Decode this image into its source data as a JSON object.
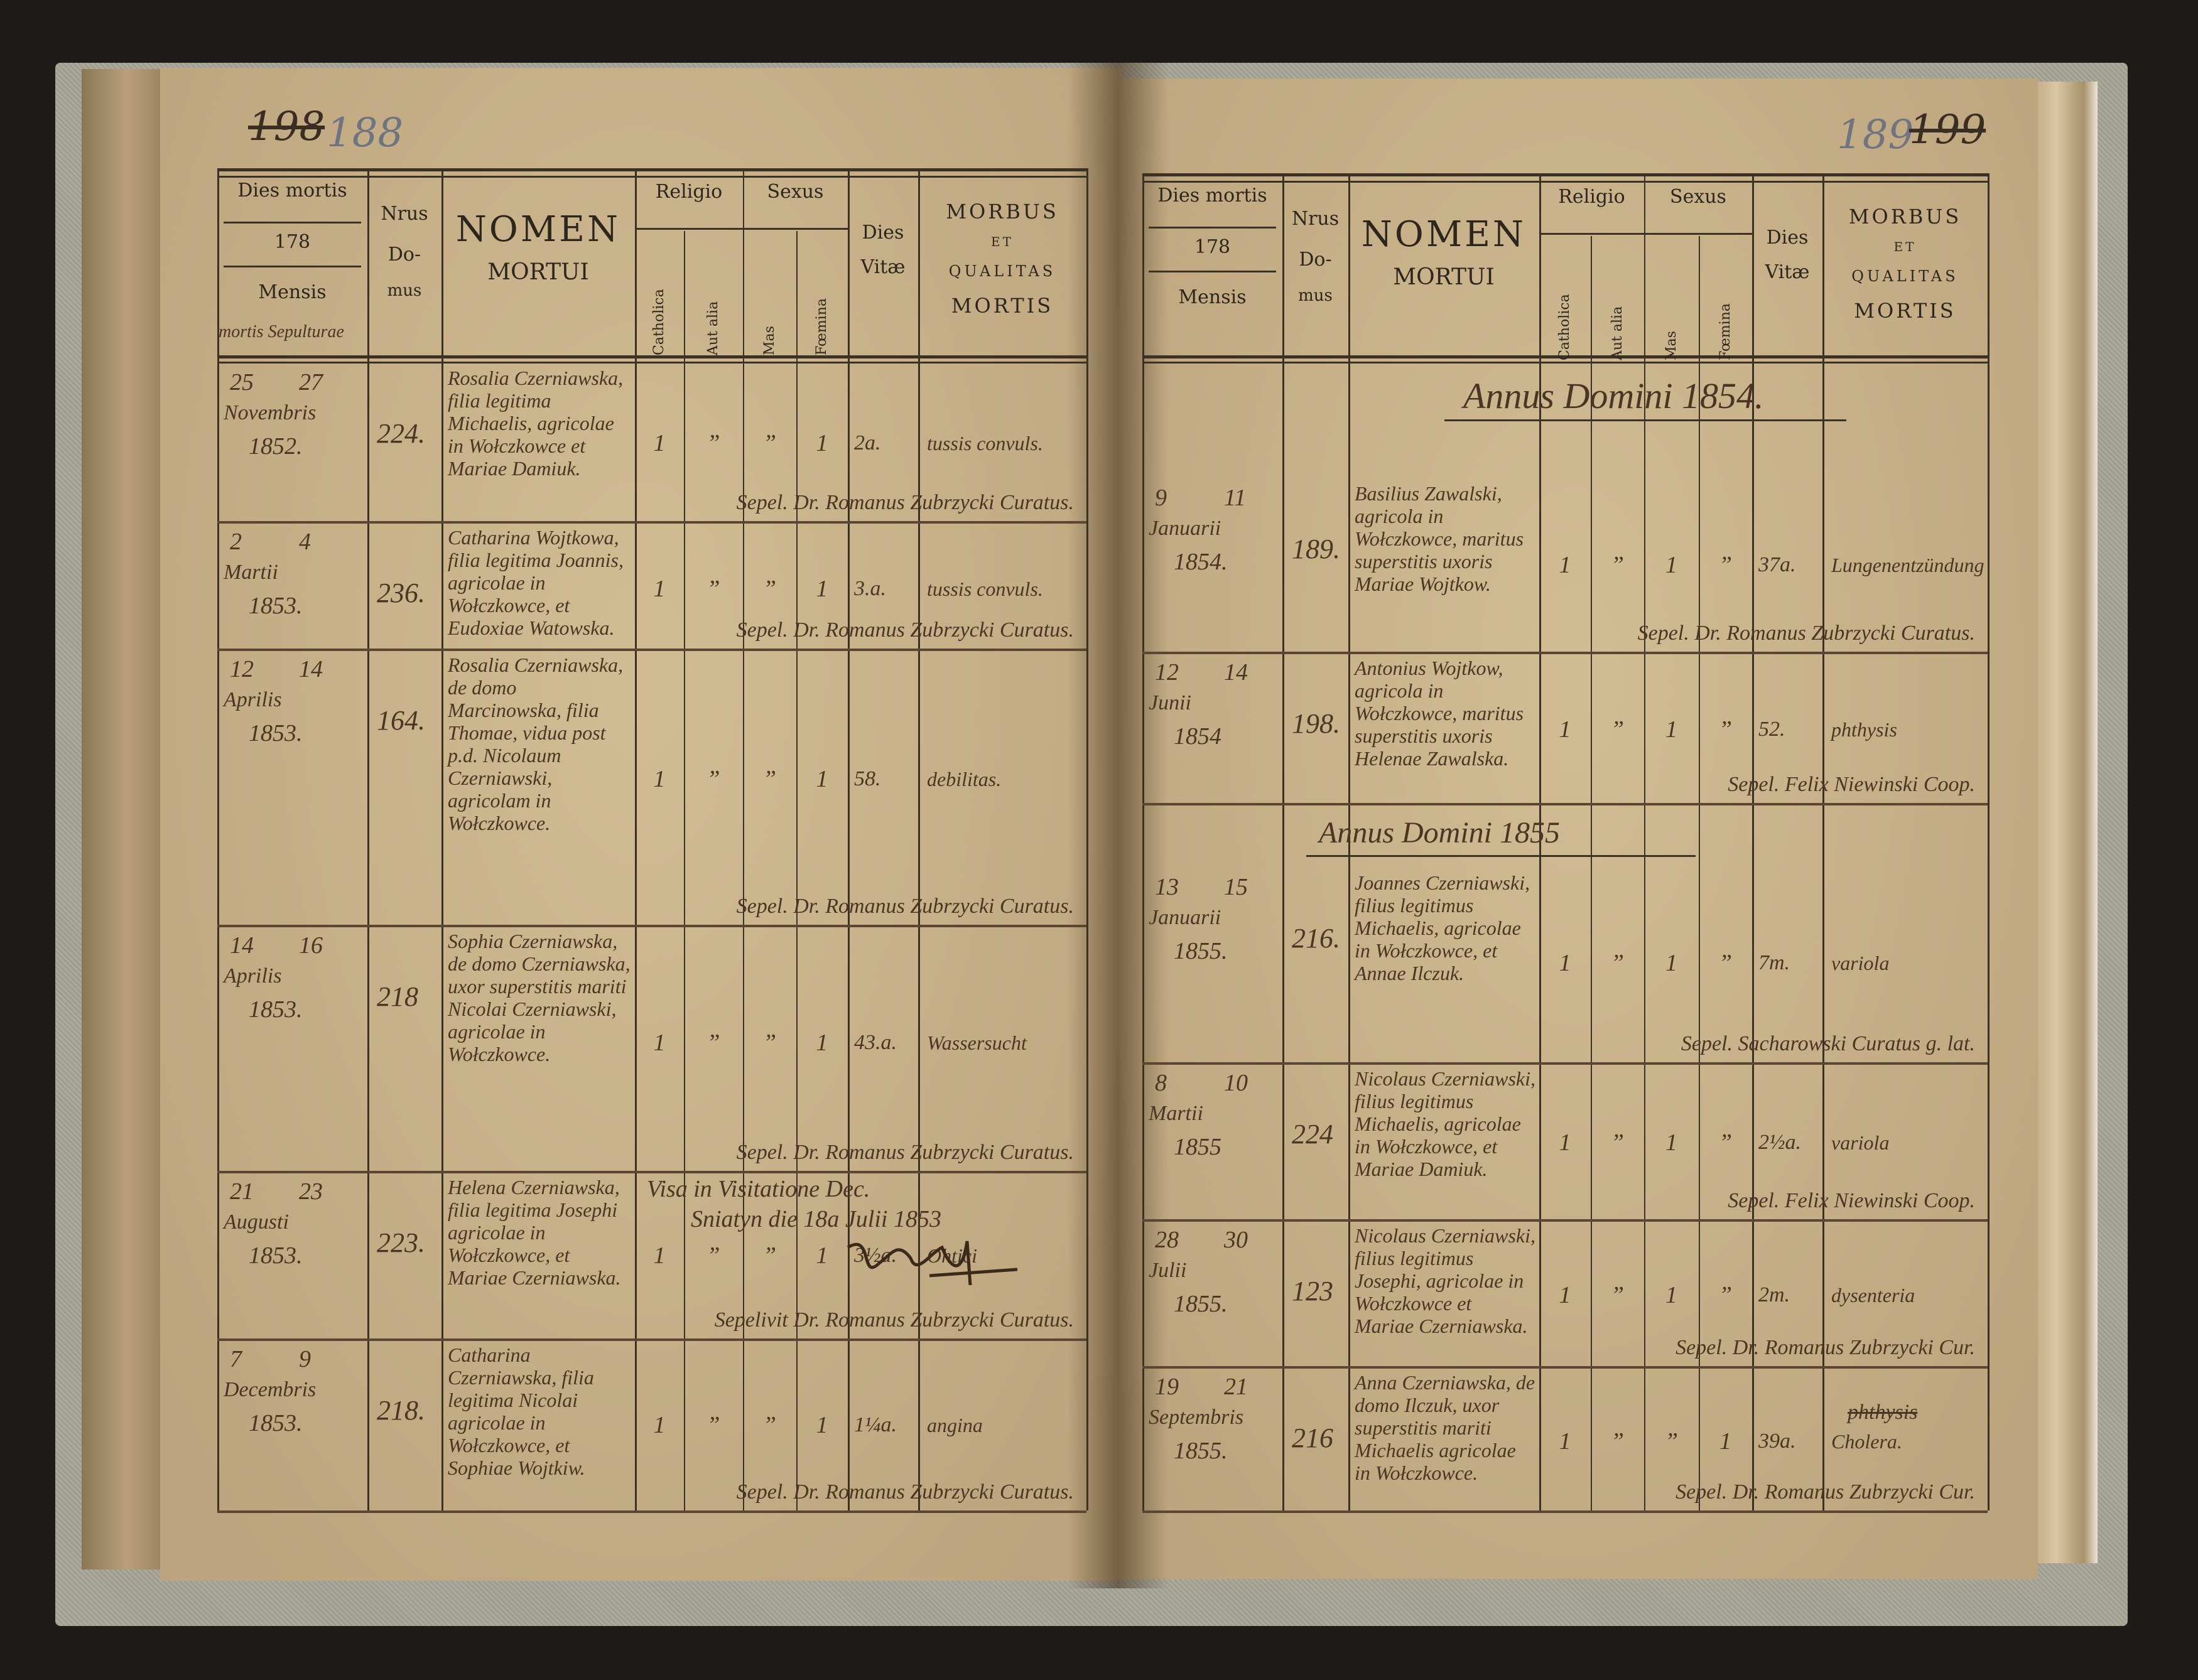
{
  "page_numbers": {
    "left_struck": "198",
    "left_pencil": "188",
    "right_pencil": "189",
    "right_struck": "199"
  },
  "header": {
    "dies_mortis": "Dies mortis",
    "year_prefix": "178",
    "mensis": "Mensis",
    "mortis_sepulturae": "mortis  Sepulturae",
    "nrus": "Nrus",
    "do": "Do-",
    "mus": "mus",
    "nomen": "NOMEN",
    "mortui": "MORTUI",
    "religio": "Religio",
    "catholica": "Catholica",
    "aut_alia": "Aut alia",
    "sexus": "Sexus",
    "mas": "Mas",
    "foemina": "Fœmina",
    "dies": "Dies",
    "vitae": "Vitæ",
    "morbus": "MORBUS",
    "et": "ET",
    "qualitas": "QUALITAS",
    "mortis": "MORTIS"
  },
  "left_page": {
    "rows": [
      {
        "day_death": "25",
        "day_burial": "27",
        "month": "Novembris",
        "year": "1852.",
        "house": "224.",
        "name": "Rosalia Czerniawska, filia legitima Michaelis, agricolae in Wołczkowce et Mariae Damiuk.",
        "catholica": "1",
        "aut_alia": "”",
        "mas": "”",
        "foemina": "1",
        "dies_vitae": "2a.",
        "morbus": "tussis convuls.",
        "note": "Sepel. Dr. Romanus Zubrzycki Curatus."
      },
      {
        "day_death": "2",
        "day_burial": "4",
        "month": "Martii",
        "year": "1853.",
        "house": "236.",
        "name": "Catharina Wojtkowa, filia legitima Joannis, agricolae in Wołczkowce, et Eudoxiae Watowska.",
        "catholica": "1",
        "aut_alia": "”",
        "mas": "”",
        "foemina": "1",
        "dies_vitae": "3.a.",
        "morbus": "tussis convuls.",
        "note": "Sepel. Dr. Romanus Zubrzycki Curatus."
      },
      {
        "day_death": "12",
        "day_burial": "14",
        "month": "Aprilis",
        "year": "1853.",
        "house": "164.",
        "name": "Rosalia Czerniawska, de domo Marcinowska, filia Thomae, vidua post p.d. Nicolaum Czerniawski, agricolam in Wołczkowce.",
        "catholica": "1",
        "aut_alia": "”",
        "mas": "”",
        "foemina": "1",
        "dies_vitae": "58.",
        "morbus": "debilitas.",
        "note": "Sepel. Dr. Romanus Zubrzycki Curatus."
      },
      {
        "day_death": "14",
        "day_burial": "16",
        "month": "Aprilis",
        "year": "1853.",
        "house": "218",
        "name": "Sophia Czerniawska, de domo Czerniawska, uxor superstitis mariti Nicolai Czerniawski, agricolae in Wołczkowce.",
        "catholica": "1",
        "aut_alia": "”",
        "mas": "”",
        "foemina": "1",
        "dies_vitae": "43.a.",
        "morbus": "Wassersucht",
        "note": "Sepel. Dr. Romanus Zubrzycki Curatus."
      },
      {
        "day_death": "21",
        "day_burial": "23",
        "month": "Augusti",
        "year": "1853.",
        "house": "223.",
        "name": "Helena Czerniawska, filia legitima Josephi agricolae in Wołczkowce, et Mariae Czerniawska.",
        "catholica": "1",
        "aut_alia": "”",
        "mas": "”",
        "foemina": "1",
        "dies_vitae": "3½a.",
        "morbus": "Ohtici",
        "note": "Sepelivit Dr. Romanus Zubrzycki Curatus."
      },
      {
        "day_death": "7",
        "day_burial": "9",
        "month": "Decembris",
        "year": "1853.",
        "house": "218.",
        "name": "Catharina Czerniawska, filia legitima Nicolai agricolae in Wołczkowce, et Sophiae Wojtkiw.",
        "catholica": "1",
        "aut_alia": "”",
        "mas": "”",
        "foemina": "1",
        "dies_vitae": "1¼a.",
        "morbus": "angina",
        "note": "Sepel.   Dr. Romanus Zubrzycki Curatus."
      }
    ],
    "visitation_note": {
      "line1": "Visa in Visitatione Dec.",
      "line2": "Sniatyn die 18a Julii 1853",
      "signature": "signature"
    }
  },
  "right_page": {
    "year_headings": [
      "Annus Domini 1854.",
      "Annus Domini 1855"
    ],
    "rows": [
      {
        "day_death": "9",
        "day_burial": "11",
        "month": "Januarii",
        "year": "1854.",
        "house": "189.",
        "name": "Basilius Zawalski, agricola in Wołczkowce, maritus superstitis uxoris Mariae Wojtkow.",
        "catholica": "1",
        "aut_alia": "”",
        "mas": "1",
        "foemina": "”",
        "dies_vitae": "37a.",
        "morbus": "Lungenentzündung",
        "note": "Sepel. Dr. Romanus Zubrzycki Curatus."
      },
      {
        "day_death": "12",
        "day_burial": "14",
        "month": "Junii",
        "year": "1854",
        "house": "198.",
        "name": "Antonius Wojtkow, agricola in Wołczkowce, maritus superstitis uxoris Helenae Zawalska.",
        "catholica": "1",
        "aut_alia": "”",
        "mas": "1",
        "foemina": "”",
        "dies_vitae": "52.",
        "morbus": "phthysis",
        "note": "Sepel. Felix Niewinski Coop."
      },
      {
        "day_death": "13",
        "day_burial": "15",
        "month": "Januarii",
        "year": "1855.",
        "house": "216.",
        "name": "Joannes Czerniawski, filius legitimus Michaelis, agricolae in Wołczkowce, et Annae Ilczuk.",
        "catholica": "1",
        "aut_alia": "”",
        "mas": "1",
        "foemina": "”",
        "dies_vitae": "7m.",
        "morbus": "variola",
        "note": "Sepel. Sacharowski Curatus g. lat."
      },
      {
        "day_death": "8",
        "day_burial": "10",
        "month": "Martii",
        "year": "1855",
        "house": "224",
        "name": "Nicolaus Czerniawski, filius legitimus Michaelis, agricolae in Wołczkowce, et Mariae Damiuk.",
        "catholica": "1",
        "aut_alia": "”",
        "mas": "1",
        "foemina": "”",
        "dies_vitae": "2½a.",
        "morbus": "variola",
        "note": "Sepel. Felix Niewinski Coop."
      },
      {
        "day_death": "28",
        "day_burial": "30",
        "month": "Julii",
        "year": "1855.",
        "house": "123",
        "name": "Nicolaus Czerniawski, filius legitimus Josephi, agricolae in Wołczkowce et Mariae Czerniawska.",
        "catholica": "1",
        "aut_alia": "”",
        "mas": "1",
        "foemina": "”",
        "dies_vitae": "2m.",
        "morbus": "dysenteria",
        "note": "Sepel. Dr. Romanus Zubrzycki Cur."
      },
      {
        "day_death": "19",
        "day_burial": "21",
        "month": "Septembris",
        "year": "1855.",
        "house": "216",
        "name": "Anna Czerniawska, de domo Ilczuk, uxor superstitis mariti Michaelis agricolae in Wołczkowce.",
        "catholica": "1",
        "aut_alia": "”",
        "mas": "”",
        "foemina": "1",
        "dies_vitae": "39a.",
        "morbus_struck": "phthysis",
        "morbus": "Cholera.",
        "note": "Sepel. Dr. Romanus Zubrzycki Cur."
      }
    ]
  },
  "colors": {
    "paper": "#c8b189",
    "ink": "#4a3623",
    "print": "#2d261d",
    "cover": "#a7a596"
  }
}
